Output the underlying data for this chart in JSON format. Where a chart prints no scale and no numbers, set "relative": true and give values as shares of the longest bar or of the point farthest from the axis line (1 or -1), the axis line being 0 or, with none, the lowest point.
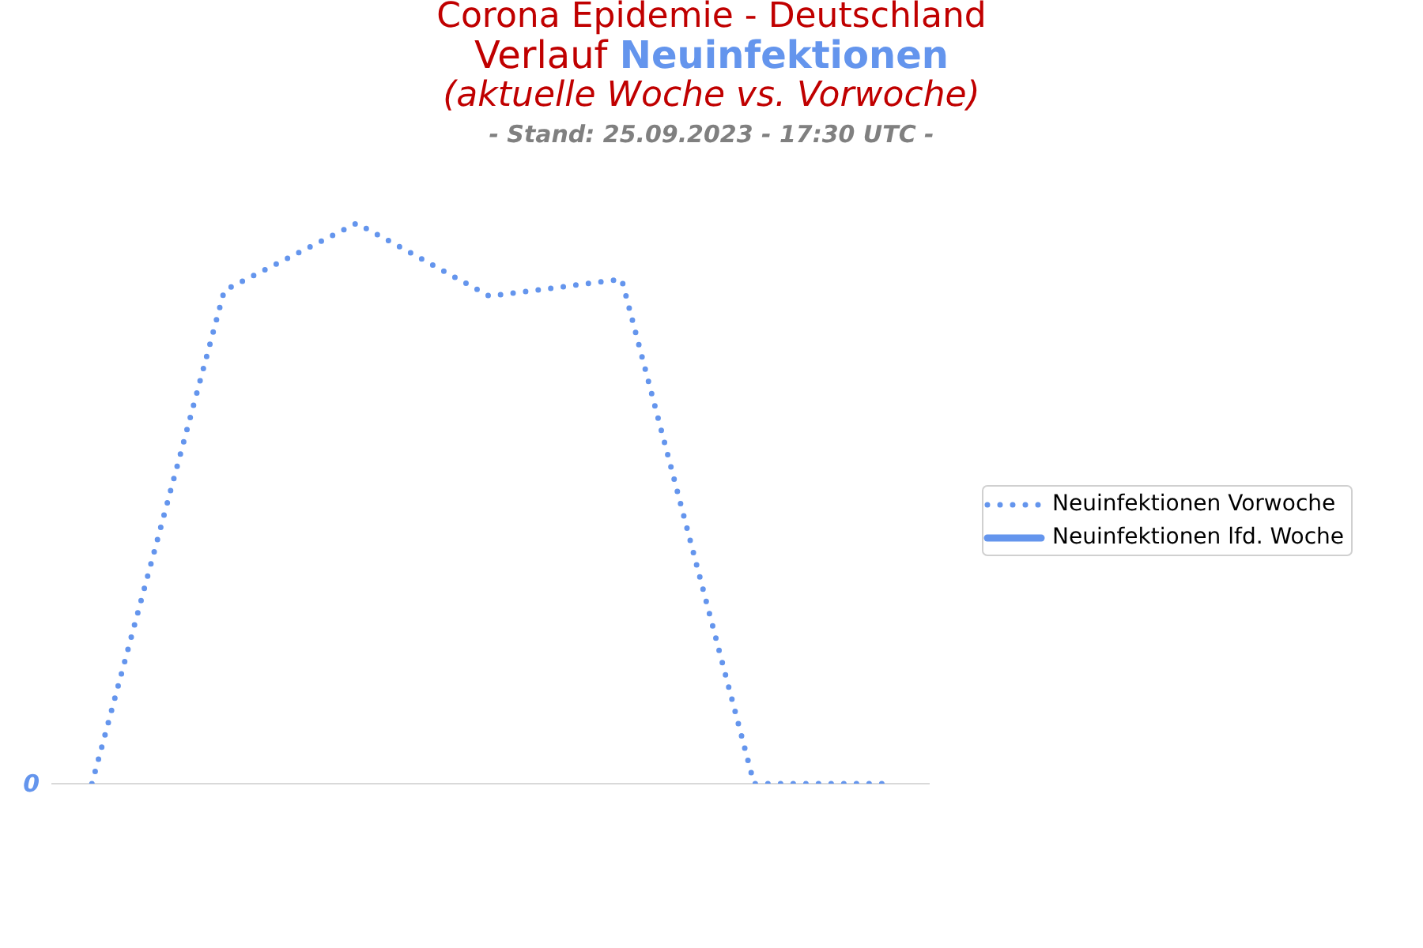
{
  "chart_data": {
    "type": "line",
    "title": "Corona Epidemie - Deutschland\nVerlauf Neuinfektionen\n(aktuelle Woche vs. Vorwoche)",
    "subtitle": "- Stand: 25.09.2023 - 17:30 UTC -",
    "annotations": [
      "0"
    ],
    "relative": true,
    "categories": [
      null,
      null,
      null,
      null,
      null,
      null,
      null
    ],
    "series": [
      {
        "name": "Neuinfektionen Vorwoche",
        "color": "#6495ed",
        "line_style": "dotted",
        "values": [
          0,
          0.88,
          1,
          0.87,
          0.9,
          0,
          0
        ]
      },
      {
        "name": "Neuinfektionen lfd. Woche",
        "color": "#6495ed",
        "line_style": "solid",
        "values": [
          null,
          null,
          null,
          null,
          null,
          null,
          null
        ]
      }
    ],
    "legend": "right"
  }
}
